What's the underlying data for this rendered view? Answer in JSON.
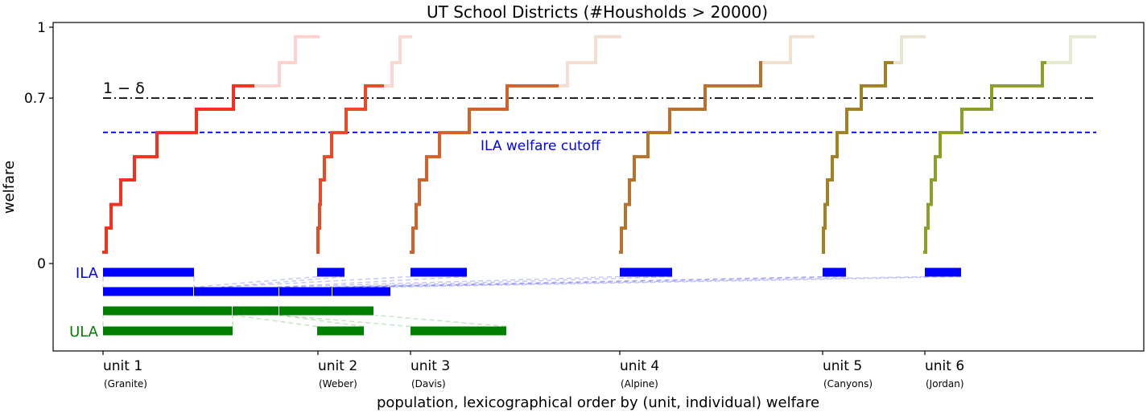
{
  "chart_data": {
    "type": "line",
    "title": "UT School Districts (#Housholds > 20000)",
    "xlabel": "population, lexicographical order by (unit, individual) welfare",
    "ylabel": "welfare",
    "xlim": [
      -6.2,
      129.3
    ],
    "ylim": [
      -0.37,
      1.02
    ],
    "yticks": [
      {
        "value": 1,
        "label": "1"
      },
      {
        "value": 0.7,
        "label": "0.7"
      },
      {
        "value": 0,
        "label": "0"
      }
    ],
    "grid": false,
    "hlines": [
      {
        "name": "one-minus-delta",
        "value": 0.7,
        "label": "1 − δ",
        "color": "#000000",
        "style": "dashdot"
      },
      {
        "name": "ila-welfare-cutoff",
        "value": 0.555,
        "label": "ILA welfare cutoff",
        "color": "#0000ff",
        "style": "dashed"
      }
    ],
    "units": [
      {
        "label": "unit 1",
        "sub": "(Granite)",
        "x": 0,
        "color": "#f5301e",
        "steps": [
          [
            -0.1,
            0.048
          ],
          [
            0.4,
            0.15
          ],
          [
            1.0,
            0.25
          ],
          [
            2.2,
            0.354
          ],
          [
            3.9,
            0.452
          ],
          [
            6.7,
            0.554
          ],
          [
            11.6,
            0.653
          ],
          [
            16.2,
            0.752
          ],
          [
            21.9,
            0.85
          ],
          [
            23.9,
            0.96
          ]
        ],
        "faded_from": 18.8,
        "end": 26.9
      },
      {
        "label": "unit 2",
        "sub": "(Weber)",
        "x": 26.7,
        "color": "#e84a25",
        "steps": [
          [
            26.5,
            0.048
          ],
          [
            26.7,
            0.15
          ],
          [
            26.9,
            0.25
          ],
          [
            27.0,
            0.354
          ],
          [
            27.5,
            0.452
          ],
          [
            28.4,
            0.554
          ],
          [
            30.2,
            0.653
          ],
          [
            32.6,
            0.752
          ],
          [
            35.9,
            0.85
          ],
          [
            36.9,
            0.96
          ]
        ],
        "faded_from": 34.9,
        "end": 38.4
      },
      {
        "label": "unit 3",
        "sub": "(Davis)",
        "x": 38.2,
        "color": "#d2622a",
        "steps": [
          [
            38.1,
            0.048
          ],
          [
            38.5,
            0.15
          ],
          [
            38.9,
            0.25
          ],
          [
            39.3,
            0.354
          ],
          [
            40.2,
            0.452
          ],
          [
            41.8,
            0.554
          ],
          [
            45.5,
            0.653
          ],
          [
            50.2,
            0.752
          ],
          [
            57.7,
            0.85
          ],
          [
            61.2,
            0.96
          ]
        ],
        "faded_from": 56.6,
        "end": 64.4
      },
      {
        "label": "unit 4",
        "sub": "(Alpine)",
        "x": 64.2,
        "color": "#b8732a",
        "steps": [
          [
            64.1,
            0.048
          ],
          [
            64.4,
            0.15
          ],
          [
            64.9,
            0.25
          ],
          [
            65.4,
            0.354
          ],
          [
            66.0,
            0.452
          ],
          [
            67.7,
            0.554
          ],
          [
            70.4,
            0.653
          ],
          [
            74.8,
            0.752
          ],
          [
            81.7,
            0.85
          ],
          [
            85.4,
            0.96
          ]
        ],
        "faded_from": 81.9,
        "end": 88.4
      },
      {
        "label": "unit 5",
        "sub": "(Canyons)",
        "x": 89.4,
        "color": "#a08224",
        "steps": [
          [
            89.3,
            0.048
          ],
          [
            89.5,
            0.15
          ],
          [
            89.7,
            0.25
          ],
          [
            90.0,
            0.354
          ],
          [
            90.6,
            0.452
          ],
          [
            91.2,
            0.554
          ],
          [
            92.4,
            0.653
          ],
          [
            94.2,
            0.752
          ],
          [
            97.2,
            0.85
          ],
          [
            99.2,
            0.96
          ]
        ],
        "faded_from": 98.2,
        "end": 102.2
      },
      {
        "label": "unit 6",
        "sub": "(Jordan)",
        "x": 102.1,
        "color": "#8f9e26",
        "steps": [
          [
            101.9,
            0.048
          ],
          [
            102.2,
            0.15
          ],
          [
            102.5,
            0.25
          ],
          [
            102.9,
            0.354
          ],
          [
            103.4,
            0.452
          ],
          [
            104.0,
            0.554
          ],
          [
            106.7,
            0.653
          ],
          [
            110.4,
            0.752
          ],
          [
            116.7,
            0.85
          ],
          [
            120.2,
            0.96
          ]
        ],
        "faded_from": 117.2,
        "end": 123.4
      }
    ],
    "allocations": {
      "ila": {
        "label": "ILA",
        "color": "#0000ff",
        "per_unit": [
          [
            0,
            11.3
          ],
          [
            26.6,
            30
          ],
          [
            38.2,
            45.2
          ],
          [
            64.2,
            70.7
          ],
          [
            89.4,
            92.3
          ],
          [
            102.1,
            106.6
          ]
        ],
        "pooled": [
          [
            0,
            11.3
          ],
          [
            11.3,
            21.9
          ],
          [
            21.9,
            28.5
          ],
          [
            28.5,
            35.8
          ]
        ]
      },
      "ula": {
        "label": "ULA",
        "color": "#008000",
        "per_unit": [
          [
            0,
            16.1
          ],
          [
            26.6,
            32.4
          ],
          [
            38.2,
            50.1
          ]
        ],
        "pooled": [
          [
            0,
            16.1
          ],
          [
            16.1,
            21.9
          ],
          [
            21.9,
            33.7
          ]
        ]
      }
    }
  }
}
